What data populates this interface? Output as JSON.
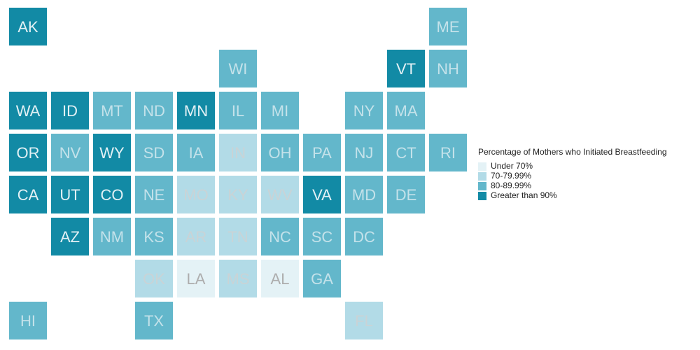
{
  "legend": {
    "title": "Percentage of Mothers who Initiated Breastfeeding",
    "items": [
      {
        "label": "Under 70%",
        "color": "#e4f2f6"
      },
      {
        "label": "70-79.99%",
        "color": "#b2dbe7"
      },
      {
        "label": "80-89.99%",
        "color": "#63b7cb"
      },
      {
        "label": "Greater than 90%",
        "color": "#128aa5"
      }
    ]
  },
  "tiles": [
    {
      "state": "AK",
      "category": 3
    },
    {
      "state": "ME",
      "category": 2
    },
    {
      "state": "WI",
      "category": 2
    },
    {
      "state": "VT",
      "category": 3
    },
    {
      "state": "NH",
      "category": 2
    },
    {
      "state": "WA",
      "category": 3
    },
    {
      "state": "ID",
      "category": 3
    },
    {
      "state": "MT",
      "category": 2
    },
    {
      "state": "ND",
      "category": 2
    },
    {
      "state": "MN",
      "category": 3
    },
    {
      "state": "IL",
      "category": 2
    },
    {
      "state": "MI",
      "category": 2
    },
    {
      "state": "NY",
      "category": 2
    },
    {
      "state": "MA",
      "category": 2
    },
    {
      "state": "OR",
      "category": 3
    },
    {
      "state": "NV",
      "category": 2
    },
    {
      "state": "WY",
      "category": 3
    },
    {
      "state": "SD",
      "category": 2
    },
    {
      "state": "IA",
      "category": 2
    },
    {
      "state": "IN",
      "category": 1
    },
    {
      "state": "OH",
      "category": 2
    },
    {
      "state": "PA",
      "category": 2
    },
    {
      "state": "NJ",
      "category": 2
    },
    {
      "state": "CT",
      "category": 2
    },
    {
      "state": "RI",
      "category": 2
    },
    {
      "state": "CA",
      "category": 3
    },
    {
      "state": "UT",
      "category": 3
    },
    {
      "state": "CO",
      "category": 3
    },
    {
      "state": "NE",
      "category": 2
    },
    {
      "state": "MO",
      "category": 1
    },
    {
      "state": "KY",
      "category": 1
    },
    {
      "state": "WV",
      "category": 1
    },
    {
      "state": "VA",
      "category": 3
    },
    {
      "state": "MD",
      "category": 2
    },
    {
      "state": "DE",
      "category": 2
    },
    {
      "state": "AZ",
      "category": 3
    },
    {
      "state": "NM",
      "category": 2
    },
    {
      "state": "KS",
      "category": 2
    },
    {
      "state": "AR",
      "category": 1
    },
    {
      "state": "TN",
      "category": 1
    },
    {
      "state": "NC",
      "category": 2
    },
    {
      "state": "SC",
      "category": 2
    },
    {
      "state": "DC",
      "category": 2
    },
    {
      "state": "OK",
      "category": 1
    },
    {
      "state": "LA",
      "category": 0
    },
    {
      "state": "MS",
      "category": 1
    },
    {
      "state": "AL",
      "category": 0
    },
    {
      "state": "GA",
      "category": 2
    },
    {
      "state": "HI",
      "category": 2
    },
    {
      "state": "TX",
      "category": 2
    },
    {
      "state": "FL",
      "category": 1
    }
  ]
}
